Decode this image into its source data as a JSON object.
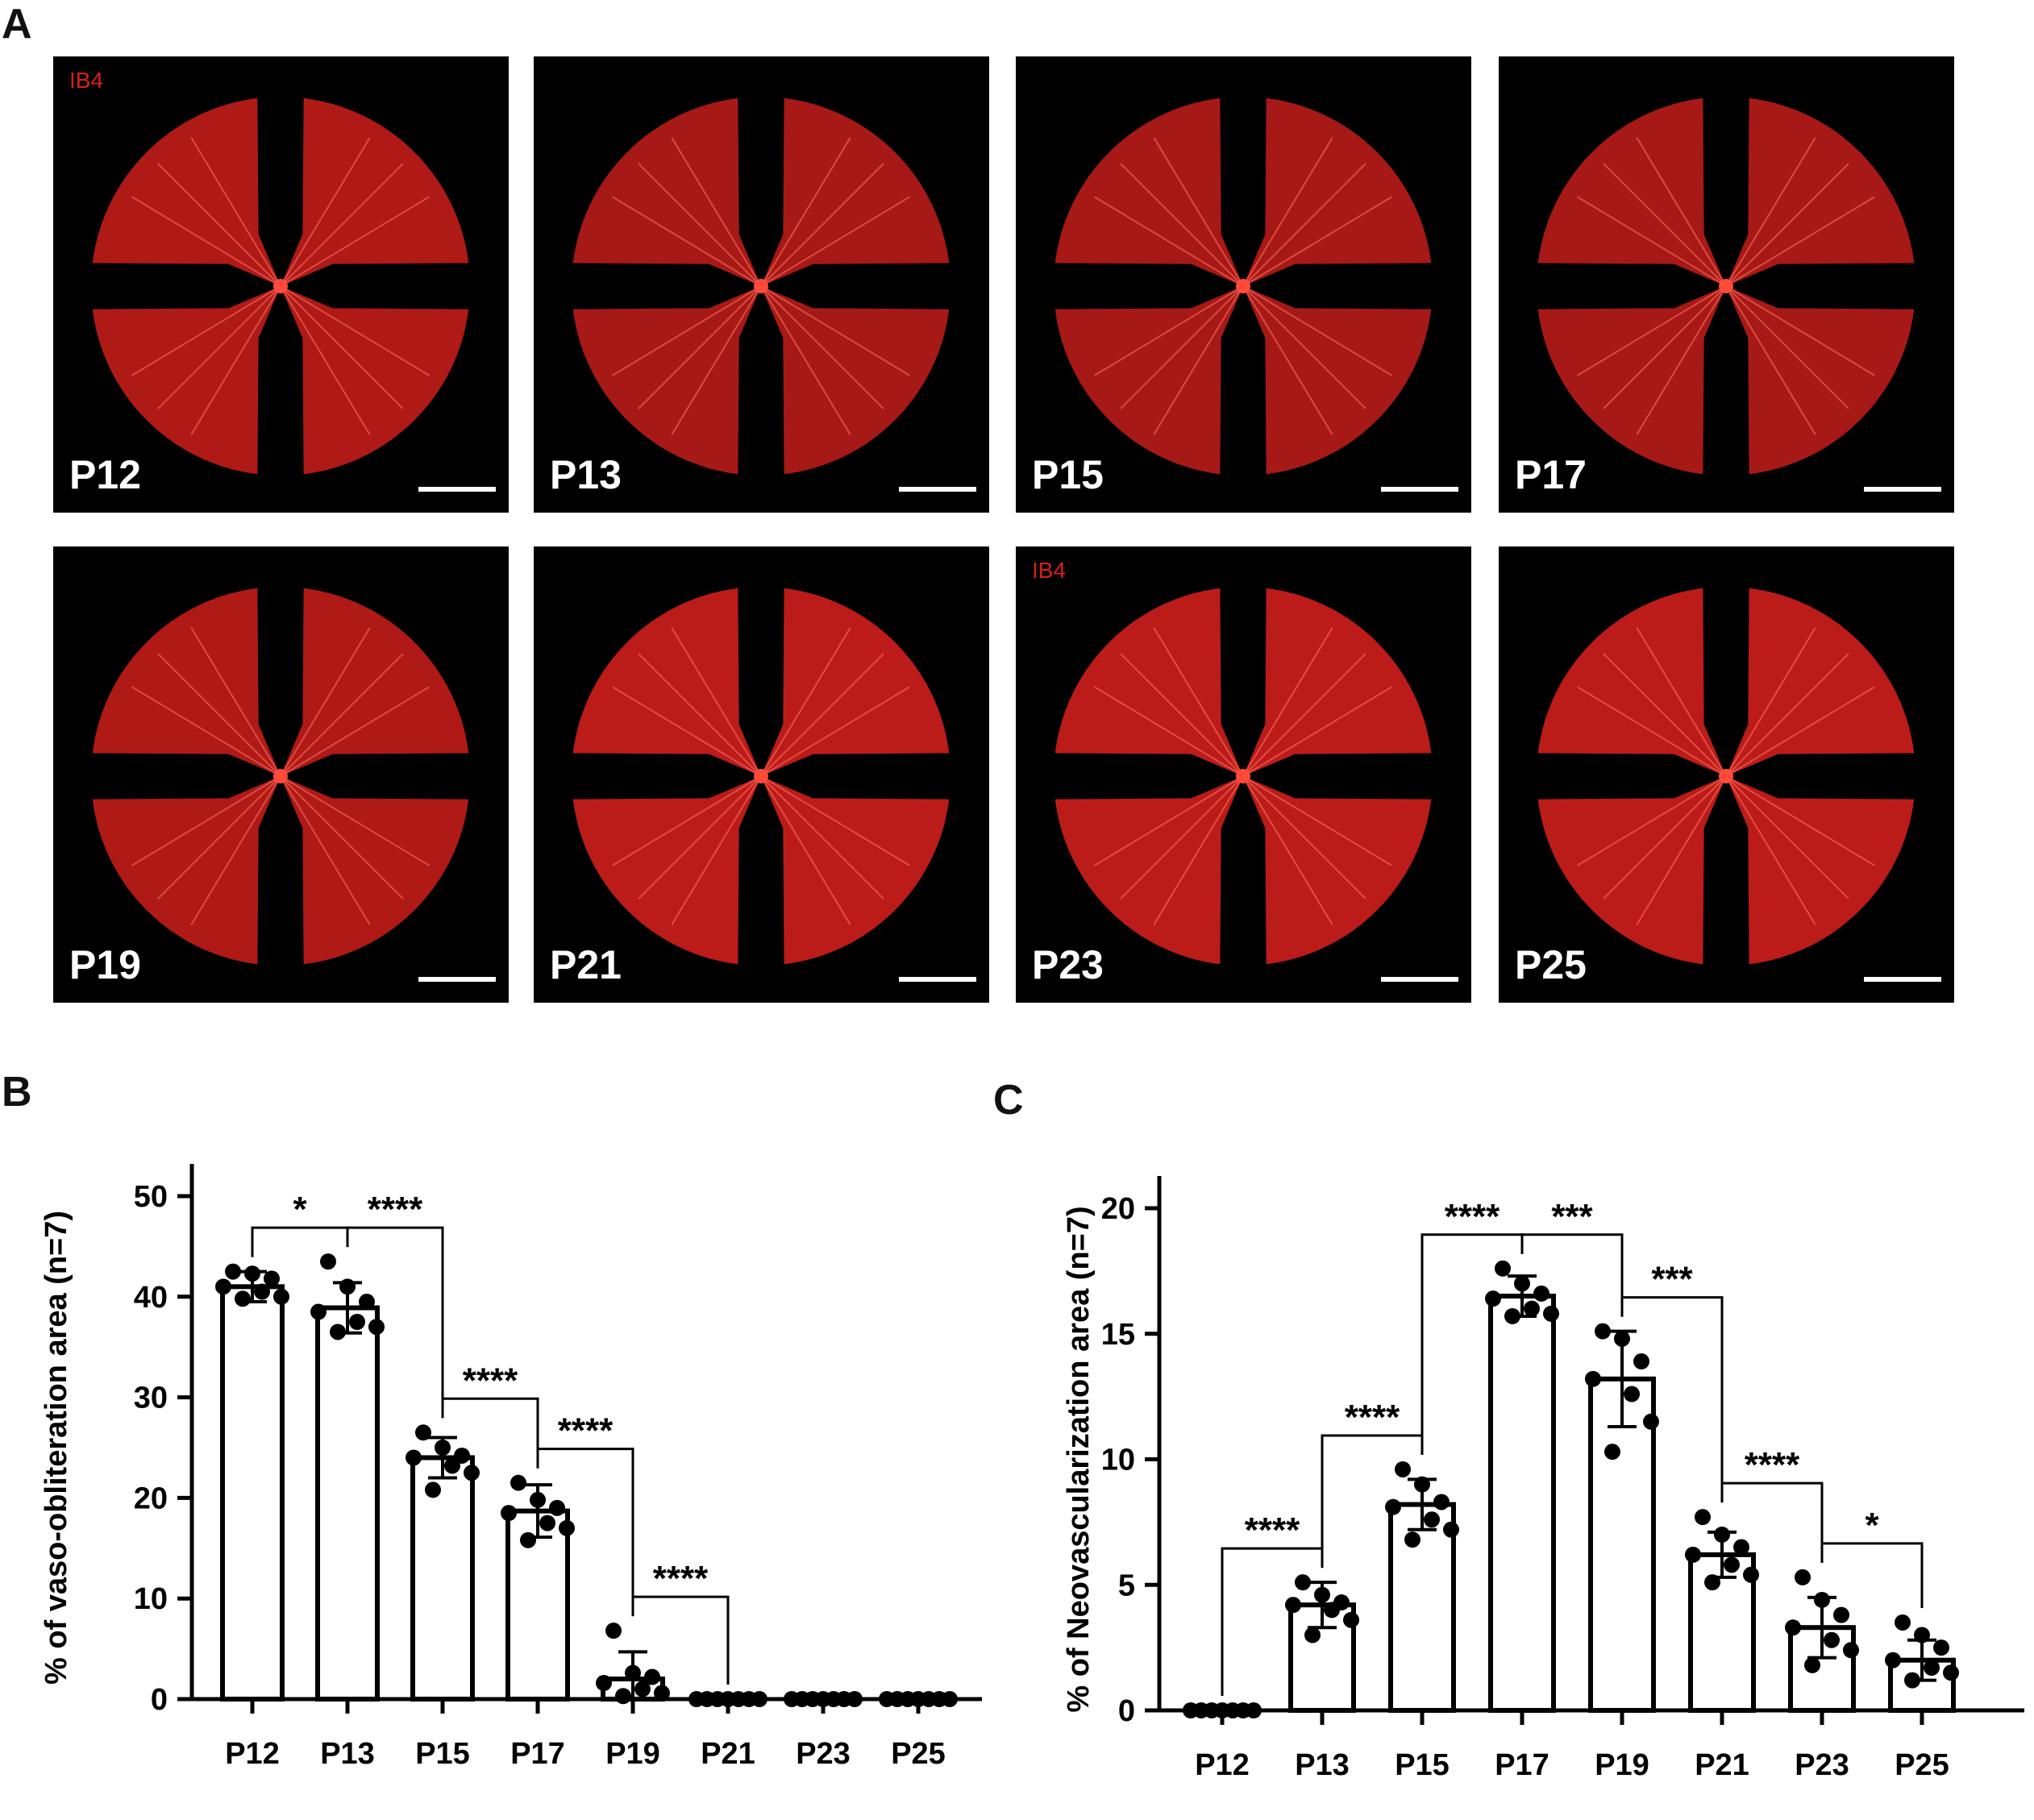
{
  "panel_a": {
    "letter": "A",
    "stain": "IB4",
    "tiles": [
      {
        "label": "P12",
        "show_stain": true
      },
      {
        "label": "P13",
        "show_stain": false
      },
      {
        "label": "P15",
        "show_stain": false
      },
      {
        "label": "P17",
        "show_stain": false
      },
      {
        "label": "P19",
        "show_stain": false
      },
      {
        "label": "P21",
        "show_stain": false
      },
      {
        "label": "P23",
        "show_stain": true
      },
      {
        "label": "P25",
        "show_stain": false
      }
    ],
    "colors": {
      "background": "#000000",
      "stain": "#d6201c",
      "label": "#ffffff"
    }
  },
  "panel_b_letter": "B",
  "panel_c_letter": "C",
  "chart_data": [
    {
      "panel": "B",
      "type": "bar",
      "categories": [
        "P12",
        "P13",
        "P15",
        "P17",
        "P19",
        "P21",
        "P23",
        "P25"
      ],
      "values": [
        41.0,
        38.9,
        24.0,
        18.7,
        2.0,
        0.0,
        0.0,
        0.0
      ],
      "error": [
        1.5,
        2.5,
        2.0,
        2.6,
        2.7,
        0.0,
        0.0,
        0.0
      ],
      "points": [
        [
          42.5,
          42.3,
          41.8,
          41.0,
          40.5,
          40.0,
          39.8
        ],
        [
          43.5,
          41.0,
          39.5,
          38.5,
          37.5,
          37.0,
          36.5
        ],
        [
          26.5,
          25.0,
          24.2,
          24.0,
          23.2,
          22.5,
          20.8
        ],
        [
          21.5,
          19.8,
          19.0,
          18.5,
          17.5,
          17.0,
          15.8
        ],
        [
          6.8,
          2.6,
          2.2,
          1.6,
          1.0,
          0.6,
          0.3
        ],
        [
          0,
          0,
          0,
          0,
          0,
          0,
          0
        ],
        [
          0,
          0,
          0,
          0,
          0,
          0,
          0
        ],
        [
          0,
          0,
          0,
          0,
          0,
          0,
          0
        ]
      ],
      "ylabel": "%  of vaso-obliteration area (n=7)",
      "ylim": [
        0,
        50
      ],
      "yticks": [
        0,
        10,
        20,
        30,
        40,
        50
      ],
      "significance": [
        {
          "from": 0,
          "to": 1,
          "label": "*"
        },
        {
          "from": 1,
          "to": 2,
          "label": "****"
        },
        {
          "from": 2,
          "to": 3,
          "label": "****"
        },
        {
          "from": 3,
          "to": 4,
          "label": "****"
        },
        {
          "from": 4,
          "to": 5,
          "label": "****"
        }
      ]
    },
    {
      "panel": "C",
      "type": "bar",
      "categories": [
        "P12",
        "P13",
        "P15",
        "P17",
        "P19",
        "P21",
        "P23",
        "P25"
      ],
      "values": [
        0.0,
        4.2,
        8.2,
        16.5,
        13.2,
        6.2,
        3.3,
        2.0
      ],
      "error": [
        0.0,
        0.9,
        1.0,
        0.8,
        1.9,
        0.9,
        1.2,
        0.8
      ],
      "points": [
        [
          0,
          0,
          0,
          0,
          0,
          0,
          0
        ],
        [
          5.1,
          4.6,
          4.3,
          4.2,
          4.0,
          3.6,
          3.0
        ],
        [
          9.6,
          9.0,
          8.3,
          8.1,
          7.6,
          7.2,
          6.8
        ],
        [
          17.6,
          17.0,
          16.6,
          16.4,
          16.0,
          15.8,
          15.7
        ],
        [
          15.1,
          14.8,
          13.9,
          13.2,
          12.6,
          11.5,
          10.3
        ],
        [
          7.7,
          7.0,
          6.5,
          6.2,
          5.8,
          5.4,
          5.1
        ],
        [
          5.3,
          4.4,
          3.8,
          3.3,
          2.8,
          2.4,
          1.8
        ],
        [
          3.5,
          3.0,
          2.5,
          2.0,
          1.7,
          1.5,
          1.2
        ]
      ],
      "ylabel": "% of Neovascularization  area (n=7)",
      "ylim": [
        0,
        20
      ],
      "yticks": [
        0,
        5,
        10,
        15,
        20
      ],
      "significance": [
        {
          "from": 0,
          "to": 1,
          "label": "****"
        },
        {
          "from": 1,
          "to": 2,
          "label": "****"
        },
        {
          "from": 2,
          "to": 3,
          "label": "****"
        },
        {
          "from": 3,
          "to": 4,
          "label": "***"
        },
        {
          "from": 4,
          "to": 5,
          "label": "***"
        },
        {
          "from": 5,
          "to": 6,
          "label": "****"
        },
        {
          "from": 6,
          "to": 7,
          "label": "*"
        }
      ]
    }
  ]
}
